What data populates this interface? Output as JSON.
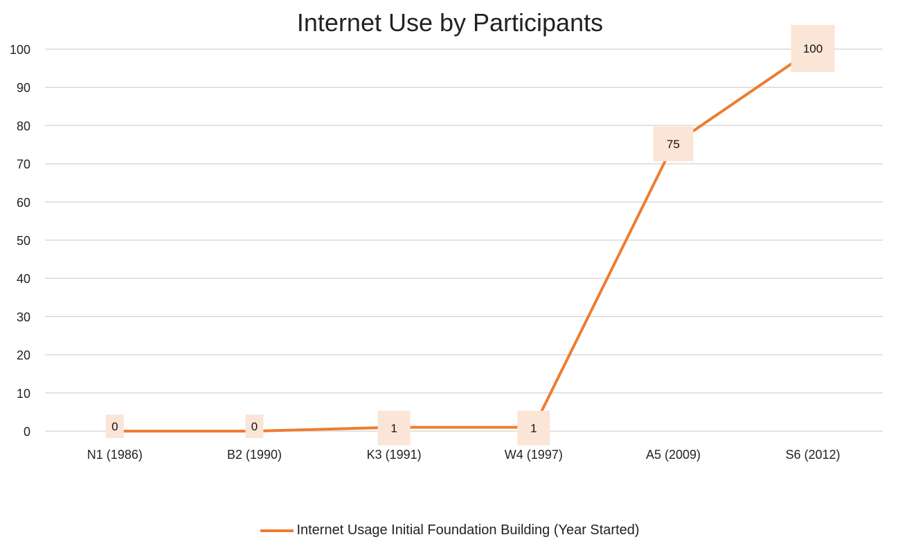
{
  "chart_data": {
    "type": "line",
    "title": "Internet Use by Participants",
    "categories": [
      "N1 (1986)",
      "B2 (1990)",
      "K3 (1991)",
      "W4 (1997)",
      "A5 (2009)",
      "S6 (2012)"
    ],
    "series": [
      {
        "name": "Internet Usage Initial Foundation Building (Year Started)",
        "values": [
          0,
          0,
          1,
          1,
          75,
          100
        ],
        "color": "#ED7D31"
      }
    ],
    "data_labels": [
      "0",
      "0",
      "1",
      "1",
      "75",
      "100"
    ],
    "ylim": [
      0,
      100
    ],
    "yticks": [
      0,
      10,
      20,
      30,
      40,
      50,
      60,
      70,
      80,
      90,
      100
    ],
    "xlabel": "",
    "ylabel": "",
    "grid": true,
    "legend_position": "bottom",
    "label_bg_color": "#FBE5D6",
    "grid_color": "#D9D9D9"
  }
}
